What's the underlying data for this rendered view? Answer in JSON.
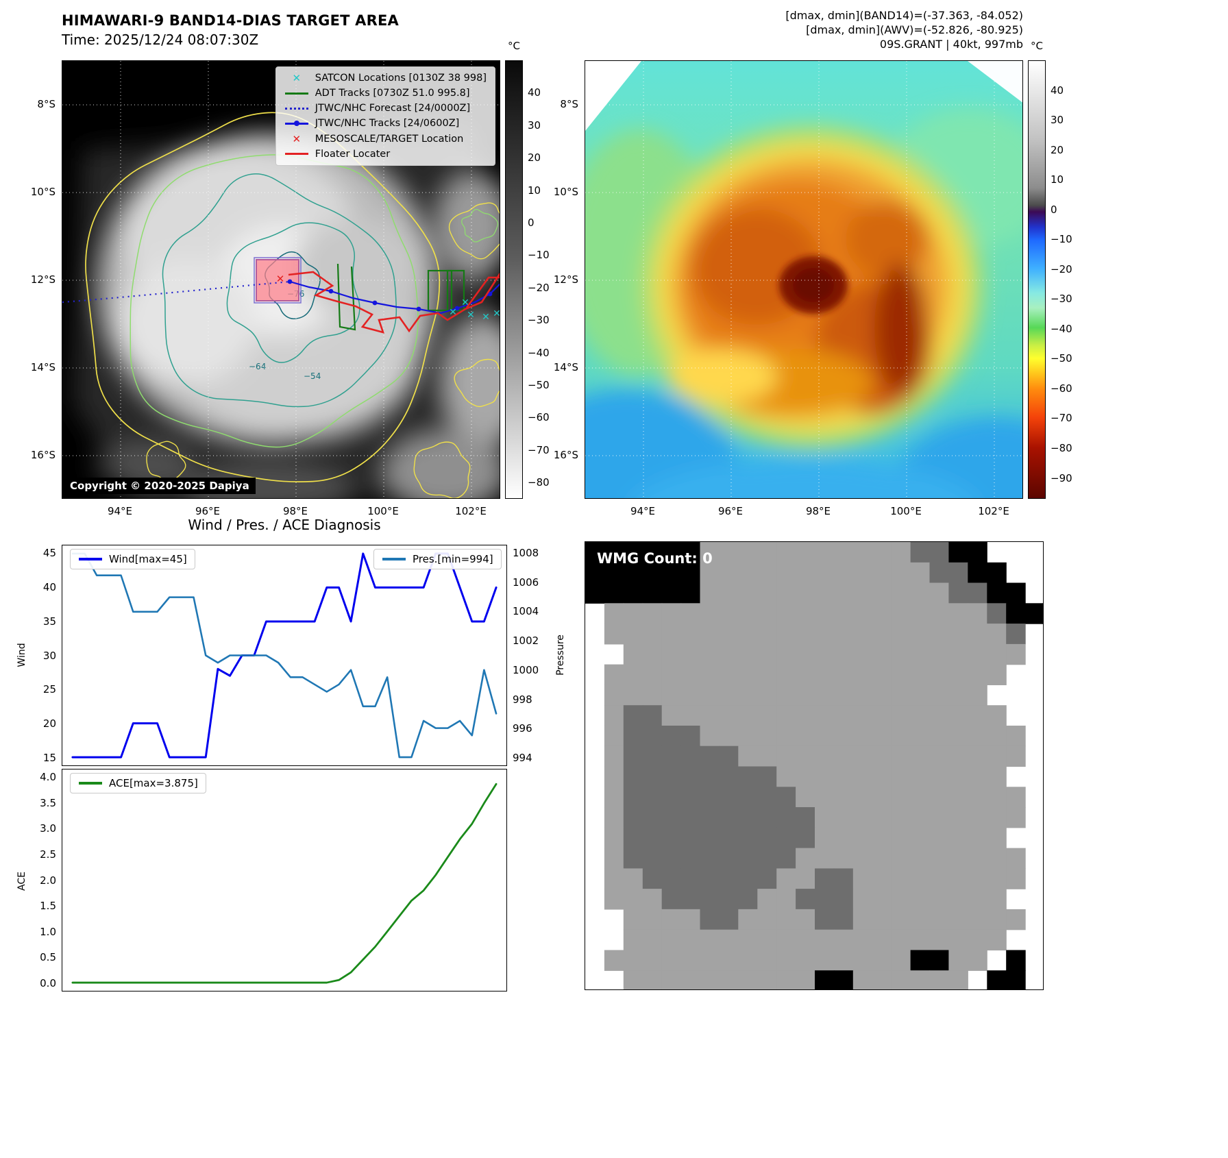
{
  "colors": {
    "wind_line": "#0000ee",
    "pressure_line": "#1f77b4",
    "ace_line": "#1a8a1a",
    "satcon_cyan": "#22c8c8",
    "track_red": "#e32222",
    "track_blue": "#1515dd",
    "adt_green": "#157a15",
    "forecast_blue": "#2323cc",
    "contour_yellow": "#f0e04a",
    "contour_green": "#8fdc6e",
    "contour_teal": "#2fa08f",
    "contour_darkteal": "#156a78",
    "target_pink": "#ff7f8a"
  },
  "band14": {
    "title": "HIMAWARI-9 BAND14-DIAS TARGET AREA",
    "time_label": "Time: 2025/12/24 08:07:30Z",
    "copyright": "Copyright © 2020-2025 Dapiya",
    "legend": [
      {
        "label": "SATCON Locations [0130Z 38 998]",
        "marker": "x",
        "color": "#22c8c8"
      },
      {
        "label": "ADT Tracks [0730Z 51.0 995.8]",
        "marker": "line",
        "color": "#157a15"
      },
      {
        "label": "JTWC/NHC Forecast [24/0000Z]",
        "marker": "dotted",
        "color": "#2323cc"
      },
      {
        "label": "JTWC/NHC Tracks [24/0600Z]",
        "marker": "line-dot",
        "color": "#1515dd"
      },
      {
        "label": "MESOSCALE/TARGET Location",
        "marker": "x",
        "color": "#e32222"
      },
      {
        "label": "Floater Locater",
        "marker": "line",
        "color": "#e32222"
      }
    ],
    "lat_ticks": [
      "8°S",
      "10°S",
      "12°S",
      "14°S",
      "16°S"
    ],
    "lon_ticks": [
      "94°E",
      "96°E",
      "98°E",
      "100°E",
      "102°E"
    ],
    "colorbar_unit": "°C",
    "colorbar_ticks": [
      "40",
      "30",
      "20",
      "10",
      "0",
      "−10",
      "−20",
      "−30",
      "−40",
      "−50",
      "−60",
      "−70",
      "−80"
    ],
    "contour_labels": [
      "−76",
      "−64",
      "−54"
    ]
  },
  "awv": {
    "header_lines": [
      "[dmax, dmin](BAND14)=(-37.363, -84.052)",
      "[dmax, dmin](AWV)=(-52.826, -80.925)",
      "09S.GRANT | 40kt, 997mb"
    ],
    "lat_ticks": [
      "8°S",
      "10°S",
      "12°S",
      "14°S",
      "16°S"
    ],
    "lon_ticks": [
      "94°E",
      "96°E",
      "98°E",
      "100°E",
      "102°E"
    ],
    "colorbar_unit": "°C",
    "colorbar_ticks": [
      "40",
      "30",
      "20",
      "10",
      "0",
      "−10",
      "−20",
      "−30",
      "−40",
      "−50",
      "−60",
      "−70",
      "−80",
      "−90"
    ]
  },
  "diagnosis": {
    "title": "Wind / Pres. / ACE Diagnosis",
    "wind_ylabel": "Wind",
    "pressure_ylabel": "Pressure",
    "ace_ylabel": "ACE",
    "wind_legend": "Wind[max=45]",
    "pres_legend": "Pres.[min=994]",
    "ace_legend": "ACE[max=3.875]",
    "wind_ticks": [
      "15",
      "20",
      "25",
      "30",
      "35",
      "40",
      "45"
    ],
    "pres_ticks": [
      "994",
      "996",
      "998",
      "1000",
      "1002",
      "1004",
      "1006",
      "1008"
    ],
    "ace_ticks": [
      "0.0",
      "0.5",
      "1.0",
      "1.5",
      "2.0",
      "2.5",
      "3.0",
      "3.5",
      "4.0"
    ]
  },
  "wmg": {
    "count_label": "WMG Count: 0",
    "palette": {
      "0": "#ffffff",
      "1": "#a3a3a3",
      "2": "#6e6e6e",
      "3": "#000000"
    },
    "grid_rows": [
      "333333111111111112233000",
      "333333111111111111223300",
      "333333111111111111122330",
      "011111111111111111111233",
      "011111111111111111111120",
      "001111111111111111111110",
      "011111111111111111111100",
      "011111111111111111111000",
      "012211111111111111111100",
      "012222111111111111111110",
      "012222221111111111111110",
      "012222222211111111111100",
      "012222222221111111111110",
      "012222222222111111111110",
      "012222222222111111111100",
      "012222222221111111111110",
      "011222222211221111111110",
      "011122222112221111111100",
      "001111221111221111111110",
      "001111111111111111111100",
      "011111111111111113311030",
      "001111111111331111110330"
    ]
  },
  "chart_data": [
    {
      "type": "line",
      "title": "Wind / Pres. / ACE Diagnosis",
      "x_axis": "unlabeled time steps (36 points)",
      "ylabel": "Wind",
      "y2label": "Pressure",
      "ylim": [
        15,
        45
      ],
      "y2lim": [
        994,
        1008
      ],
      "legend_position": "upper left (Wind), upper right (Pres.)",
      "grid": false,
      "series": [
        {
          "name": "Wind[max=45]",
          "axis": "left",
          "color": "#0000ee",
          "values": [
            15,
            15,
            15,
            15,
            15,
            20,
            20,
            20,
            15,
            15,
            15,
            15,
            28,
            27,
            30,
            30,
            35,
            35,
            35,
            35,
            35,
            40,
            40,
            35,
            45,
            40,
            40,
            40,
            40,
            40,
            45,
            45,
            40,
            35,
            35,
            40
          ]
        },
        {
          "name": "Pres.[min=994]",
          "axis": "right",
          "color": "#1f77b4",
          "values": [
            1008,
            1008,
            1006.5,
            1006.5,
            1006.5,
            1004,
            1004,
            1004,
            1005,
            1005,
            1005,
            1001,
            1000.5,
            1001,
            1001,
            1001,
            1001,
            1000.5,
            999.5,
            999.5,
            999,
            998.5,
            999,
            1000,
            997.5,
            997.5,
            999.5,
            994,
            994,
            996.5,
            996,
            996,
            996.5,
            995.5,
            1000,
            997
          ]
        }
      ]
    },
    {
      "type": "line",
      "x_axis": "unlabeled time steps (36 points)",
      "ylabel": "ACE",
      "ylim": [
        0,
        4
      ],
      "legend_position": "upper left",
      "grid": false,
      "series": [
        {
          "name": "ACE[max=3.875]",
          "color": "#1a8a1a",
          "values": [
            0,
            0,
            0,
            0,
            0,
            0,
            0,
            0,
            0,
            0,
            0,
            0,
            0,
            0,
            0,
            0,
            0,
            0,
            0,
            0,
            0,
            0,
            0.05,
            0.2,
            0.45,
            0.7,
            1.0,
            1.3,
            1.6,
            1.8,
            2.1,
            2.45,
            2.8,
            3.1,
            3.5,
            3.875
          ]
        }
      ]
    }
  ]
}
